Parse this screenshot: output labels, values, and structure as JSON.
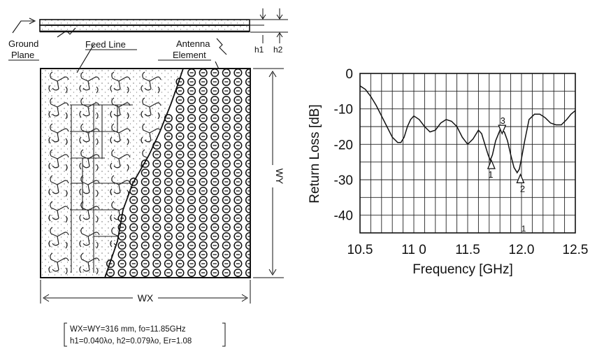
{
  "antenna": {
    "labels": {
      "ground_plane": [
        "Ground",
        "Plane"
      ],
      "feed_line": "Feed Line",
      "antenna_element": [
        "Antenna",
        "Element"
      ],
      "h1": "h1",
      "h2": "h2",
      "wx": "WX",
      "wy": "WY"
    },
    "caption": [
      "WX=WY=316 mm, fo=11.85GHz",
      "h1=0.040λo, h2=0.079λo, Er=1.08"
    ],
    "element_grid": {
      "rows": 23,
      "cols": 13
    },
    "feed_grid": {
      "rows": 8,
      "cols": 4
    }
  },
  "chart_data": {
    "type": "line",
    "xlabel": "Frequency [GHz]",
    "ylabel": "Return Loss [dB]",
    "xlim": [
      10.5,
      12.5
    ],
    "ylim": [
      -45,
      0
    ],
    "xticks": [
      10.5,
      11.0,
      11.5,
      12.0,
      12.5
    ],
    "xtick_labels": [
      "10.5",
      "11 0",
      "11.5",
      "12.0",
      "12.5"
    ],
    "yticks": [
      0,
      -10,
      -20,
      -30,
      -40
    ],
    "ytick_labels": [
      "0",
      "-10",
      "-20",
      "-30",
      "-40"
    ],
    "grid": true,
    "series": [
      {
        "x": [
          10.5,
          10.55,
          10.6,
          10.65,
          10.7,
          10.75,
          10.8,
          10.85,
          10.88,
          10.91,
          10.94,
          10.97,
          11.0,
          11.05,
          11.1,
          11.15,
          11.2,
          11.25,
          11.3,
          11.35,
          11.4,
          11.45,
          11.5,
          11.55,
          11.6,
          11.63,
          11.66,
          11.69,
          11.71,
          11.73,
          11.76,
          11.8,
          11.84,
          11.87,
          11.9,
          11.93,
          11.96,
          11.98,
          12.0,
          12.03,
          12.07,
          12.12,
          12.17,
          12.22,
          12.27,
          12.32,
          12.37,
          12.42,
          12.46,
          12.5
        ],
        "y": [
          -3.5,
          -4.5,
          -6.5,
          -9,
          -12,
          -15,
          -18,
          -19.5,
          -19.5,
          -18,
          -15,
          -13,
          -12,
          -13,
          -15,
          -16.5,
          -16,
          -14,
          -13,
          -13.5,
          -15,
          -18,
          -20,
          -18.5,
          -16,
          -17,
          -20,
          -23,
          -24.5,
          -23,
          -19,
          -16,
          -16.5,
          -19,
          -23,
          -26.5,
          -28,
          -27,
          -24,
          -19,
          -13,
          -11.5,
          -11.5,
          -12.5,
          -14,
          -14.5,
          -14.5,
          -13,
          -11.5,
          -10.5
        ]
      }
    ],
    "markers": [
      {
        "label": "1",
        "x": 11.72,
        "y": -24.5,
        "direction": "up"
      },
      {
        "label": "2",
        "x": 11.99,
        "y": -28.5,
        "direction": "up"
      },
      {
        "label": "3",
        "x": 11.82,
        "y": -17.0,
        "direction": "down"
      }
    ],
    "annotations": [
      {
        "text": "1",
        "x": 12.02
      }
    ]
  }
}
